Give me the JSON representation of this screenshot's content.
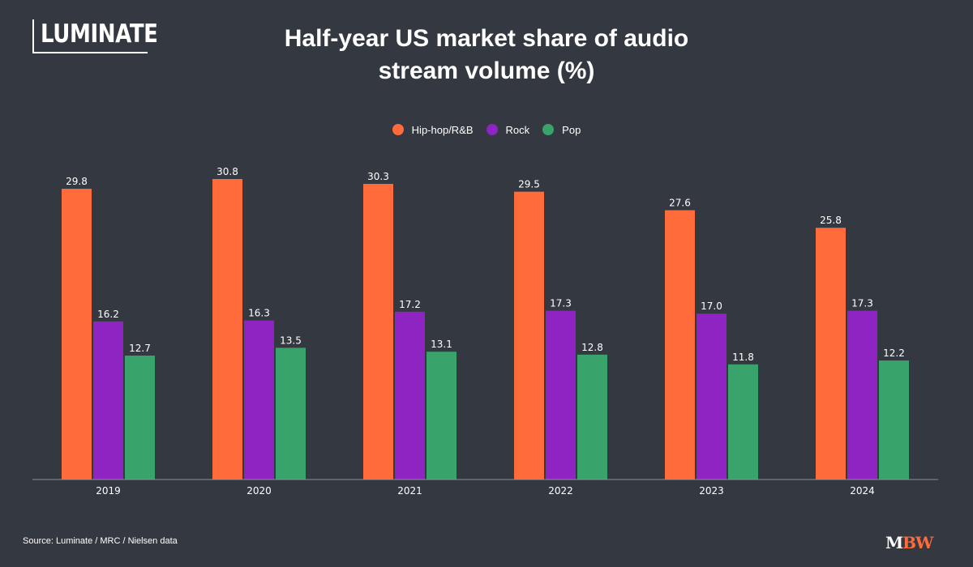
{
  "brand": {
    "logo_text": "LUMINATE",
    "publisher_m": "M",
    "publisher_bw": "BW"
  },
  "source_text": "Source: Luminate / MRC / Nielsen data",
  "chart_data": {
    "type": "bar",
    "title": "Half-year US market share of audio stream volume (%)",
    "categories": [
      "2019",
      "2020",
      "2021",
      "2022",
      "2023",
      "2024"
    ],
    "series": [
      {
        "name": "Hip-hop/R&B",
        "color": "#ff6b3b",
        "values": [
          29.8,
          30.8,
          30.3,
          29.5,
          27.6,
          25.8
        ]
      },
      {
        "name": "Rock",
        "color": "#8e24c2",
        "values": [
          16.2,
          16.3,
          17.2,
          17.3,
          17.0,
          17.3
        ]
      },
      {
        "name": "Pop",
        "color": "#38a46c",
        "values": [
          12.7,
          13.5,
          13.1,
          12.8,
          11.8,
          12.2
        ]
      }
    ],
    "ylim": [
      0,
      30.8
    ],
    "grid": false,
    "legend_position": "top-center",
    "data_labels": true
  }
}
